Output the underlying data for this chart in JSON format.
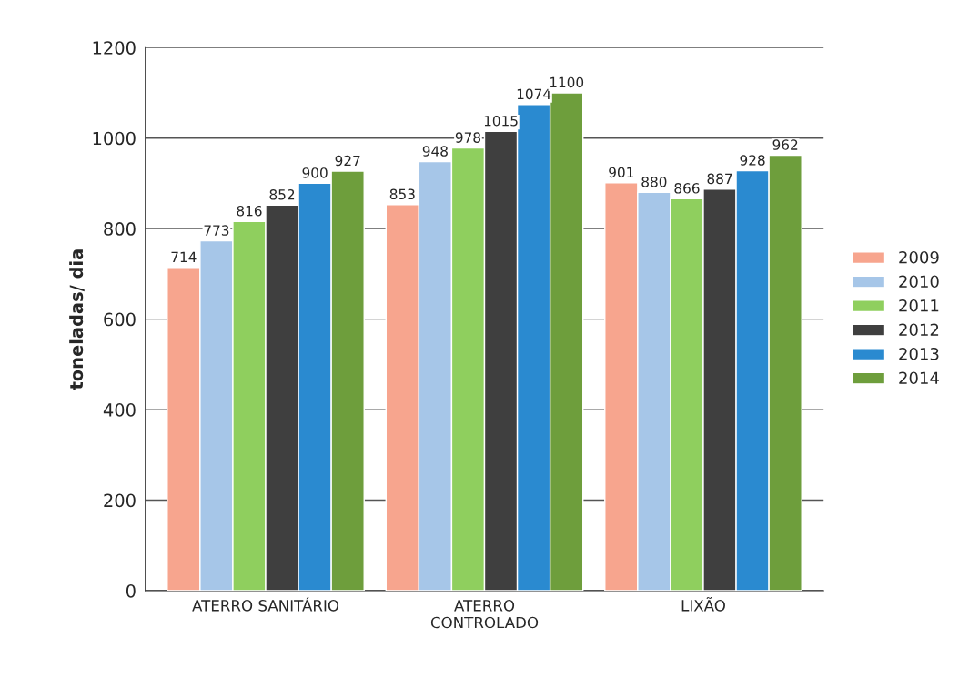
{
  "chart_data": {
    "type": "bar",
    "ylabel": "toneladas/ dia",
    "categories": [
      "ATERRO SANITÁRIO",
      "ATERRO\nCONTROLADO",
      "LIXÃO"
    ],
    "series": [
      {
        "name": "2009",
        "color": "#f7a58e",
        "values": [
          714,
          853,
          901
        ]
      },
      {
        "name": "2010",
        "color": "#a6c6e8",
        "values": [
          773,
          948,
          880
        ]
      },
      {
        "name": "2011",
        "color": "#8fcf5e",
        "values": [
          816,
          978,
          866
        ]
      },
      {
        "name": "2012",
        "color": "#3f3f3f",
        "values": [
          852,
          1015,
          887
        ]
      },
      {
        "name": "2013",
        "color": "#2a8ad0",
        "values": [
          900,
          1074,
          928
        ]
      },
      {
        "name": "2014",
        "color": "#6e9e3c",
        "values": [
          927,
          1100,
          962
        ]
      }
    ],
    "ylim": [
      0,
      1200
    ],
    "yticks": [
      0,
      200,
      400,
      600,
      800,
      1000,
      1200
    ],
    "grid": "y",
    "legend": "right",
    "data_labels": true
  }
}
